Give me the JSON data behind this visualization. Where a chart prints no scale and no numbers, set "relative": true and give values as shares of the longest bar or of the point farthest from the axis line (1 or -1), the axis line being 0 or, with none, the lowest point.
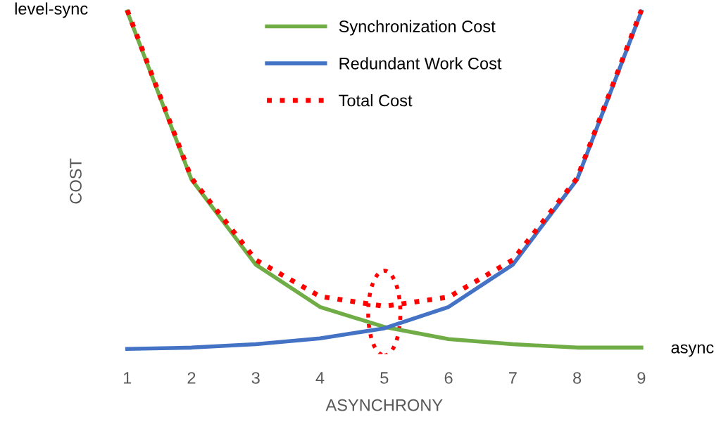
{
  "chart_data": {
    "type": "line",
    "relative": true,
    "xlabel": "ASYNCHRONY",
    "ylabel": "COST",
    "categories": [
      "1",
      "2",
      "3",
      "4",
      "5",
      "6",
      "7",
      "8",
      "9"
    ],
    "series": [
      {
        "name": "Synchronization Cost",
        "color": "#70ad47",
        "line_style": "solid",
        "values": [
          0.996,
          0.5,
          0.249,
          0.124,
          0.065,
          0.029,
          0.014,
          0.004,
          0.004
        ]
      },
      {
        "name": "Redundant Work Cost",
        "color": "#4472c4",
        "line_style": "solid",
        "values": [
          0,
          0.004,
          0.014,
          0.031,
          0.061,
          0.124,
          0.249,
          0.5,
          0.996
        ]
      },
      {
        "name": "Total Cost",
        "color": "#ff0000",
        "line_style": "dotted",
        "values": [
          1.0,
          0.504,
          0.263,
          0.155,
          0.126,
          0.153,
          0.263,
          0.504,
          1.0
        ]
      }
    ],
    "annotations": [
      {
        "text": "level-sync",
        "x": "1",
        "y": 1.0
      },
      {
        "text": "async",
        "x": "9",
        "y": 0
      }
    ],
    "legend": "top",
    "grid": false,
    "tick_labels": "x",
    "marker": "none"
  }
}
